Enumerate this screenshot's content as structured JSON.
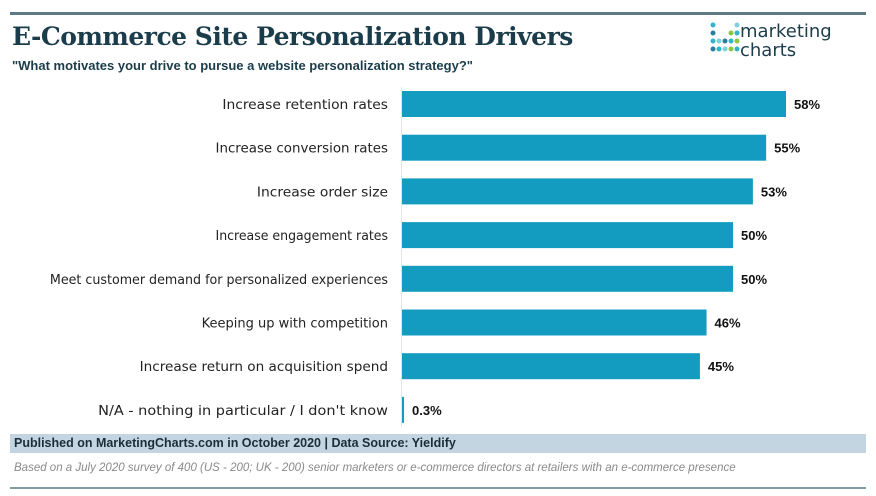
{
  "title": "E-Commerce Site Personalization Drivers",
  "subtitle": "\"What motivates your drive to pursue a website personalization strategy?\"",
  "logo": {
    "line1": "marketing",
    "line2": "charts"
  },
  "footer": {
    "published": "Published on MarketingCharts.com in October 2020 | Data Source: Yieldify",
    "note": "Based on a July 2020 survey of 400 (US - 200; UK - 200) senior marketers or e-commerce directors at retailers with an e-commerce presence"
  },
  "colors": {
    "bar": "#139cc0",
    "title": "#1b3d4b"
  },
  "chart_data": {
    "type": "bar",
    "orientation": "horizontal",
    "categories": [
      "Increase retention rates",
      "Increase conversion rates",
      "Increase order size",
      "Increase engagement rates",
      "Meet customer demand for personalized experiences",
      "Keeping up with competition",
      "Increase return on acquisition spend",
      "N/A - nothing in particular / I don't know"
    ],
    "values": [
      58,
      55,
      53,
      50,
      50,
      46,
      45,
      0.3
    ],
    "data_labels": [
      "58%",
      "55%",
      "53%",
      "50%",
      "50%",
      "46%",
      "45%",
      "0.3%"
    ],
    "xlim": [
      0,
      60
    ],
    "grid": false
  }
}
